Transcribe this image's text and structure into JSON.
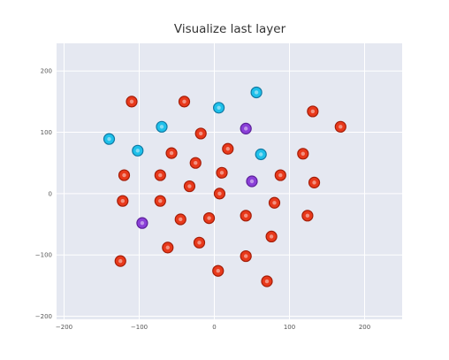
{
  "chart_data": {
    "type": "scatter",
    "title": "Visualize last layer",
    "xlabel": "",
    "ylabel": "",
    "xlim": [
      -210,
      250
    ],
    "ylim": [
      -205,
      245
    ],
    "x_ticks": [
      -200,
      -100,
      0,
      100,
      200
    ],
    "y_ticks": [
      -200,
      -100,
      0,
      100,
      200
    ],
    "x_tick_labels": [
      "−200",
      "−100",
      "0",
      "100",
      "200"
    ],
    "y_tick_labels": [
      "−200",
      "−100",
      "0",
      "100",
      "200"
    ],
    "grid": true,
    "background": "#e5e8f1",
    "series": [
      {
        "color": "#e8391b",
        "edge": "#a31d08",
        "points": [
          [
            -110,
            150
          ],
          [
            -40,
            150
          ],
          [
            131,
            134
          ],
          [
            168,
            109
          ],
          [
            -18,
            98
          ],
          [
            -57,
            66
          ],
          [
            18,
            73
          ],
          [
            118,
            65
          ],
          [
            -25,
            50
          ],
          [
            -120,
            30
          ],
          [
            -72,
            30
          ],
          [
            10,
            34
          ],
          [
            88,
            30
          ],
          [
            133,
            18
          ],
          [
            -33,
            12
          ],
          [
            7,
            0
          ],
          [
            -122,
            -12
          ],
          [
            -72,
            -12
          ],
          [
            80,
            -15
          ],
          [
            -45,
            -42
          ],
          [
            -7,
            -40
          ],
          [
            42,
            -36
          ],
          [
            124,
            -36
          ],
          [
            76,
            -70
          ],
          [
            -62,
            -88
          ],
          [
            -20,
            -80
          ],
          [
            -125,
            -110
          ],
          [
            42,
            -102
          ],
          [
            5,
            -126
          ],
          [
            70,
            -143
          ]
        ]
      },
      {
        "color": "#1ec0ea",
        "edge": "#1179a3",
        "points": [
          [
            56,
            165
          ],
          [
            6,
            140
          ],
          [
            -70,
            109
          ],
          [
            -140,
            89
          ],
          [
            -102,
            70
          ],
          [
            62,
            64
          ]
        ]
      },
      {
        "color": "#8a3fd8",
        "edge": "#5b2099",
        "points": [
          [
            42,
            106
          ],
          [
            50,
            20
          ],
          [
            -96,
            -48
          ]
        ]
      }
    ]
  }
}
